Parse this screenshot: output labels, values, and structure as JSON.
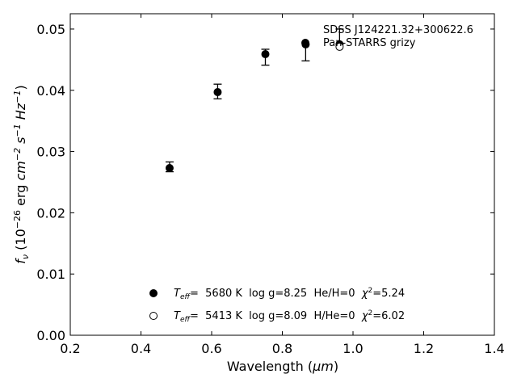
{
  "chart_data": {
    "type": "scatter",
    "title": "",
    "xlabel": {
      "text": "Wavelength (",
      "unit": "μm",
      "close": ")"
    },
    "ylabel": {
      "f": "f",
      "nu": "ν",
      "open": " (10",
      "exp1": "−26",
      "erg": " erg ",
      "cm": "cm",
      "exp2": "−2",
      "s": " s",
      "exp3": "−1",
      "hz": " Hz",
      "exp4": "−1",
      "close": ")"
    },
    "xlim": [
      0.2,
      1.4
    ],
    "ylim": [
      0.0,
      0.0525
    ],
    "xticks": [
      "0.2",
      "0.4",
      "0.6",
      "0.8",
      "1.0",
      "1.2",
      "1.4"
    ],
    "yticks": [
      "0.00",
      "0.01",
      "0.02",
      "0.03",
      "0.04",
      "0.05"
    ],
    "grid": false,
    "series": [
      {
        "name": "SDSS J124221.32+300622.6",
        "marker": "filled-circle",
        "x": [
          0.481,
          0.617,
          0.752,
          0.866,
          0.962
        ],
        "y": [
          0.0273,
          0.0397,
          0.0459,
          0.0475,
          0.0475
        ],
        "yerr_low": [
          0.0006,
          0.0011,
          0.0018,
          0.0027,
          0.0
        ],
        "yerr_high": [
          0.001,
          0.0013,
          0.0008,
          0.0,
          0.0025
        ]
      },
      {
        "name": "Pan-STARRS grizy",
        "marker": "open-circle",
        "x": [
          0.962
        ],
        "y": [
          0.0471
        ]
      }
    ],
    "legend": {
      "placement": "top-right",
      "entries": [
        "SDSS J124221.32+300622.6",
        "Pan-STARRS grizy"
      ]
    },
    "model_key": [
      {
        "marker": "filled-circle",
        "teff_label": "T",
        "teff_sub": "eff",
        "text": "=  5680 K  log g=8.25  He/H=0  ",
        "chi": "χ",
        "chi_sup": "2",
        "chi_val": "=5.24"
      },
      {
        "marker": "open-circle",
        "teff_label": "T",
        "teff_sub": "eff",
        "text": "=  5413 K  log g=8.09  H/He=0  ",
        "chi": "χ",
        "chi_sup": "2",
        "chi_val": "=6.02"
      }
    ],
    "colors": {
      "marker": "#000000",
      "background": "#ffffff"
    }
  }
}
